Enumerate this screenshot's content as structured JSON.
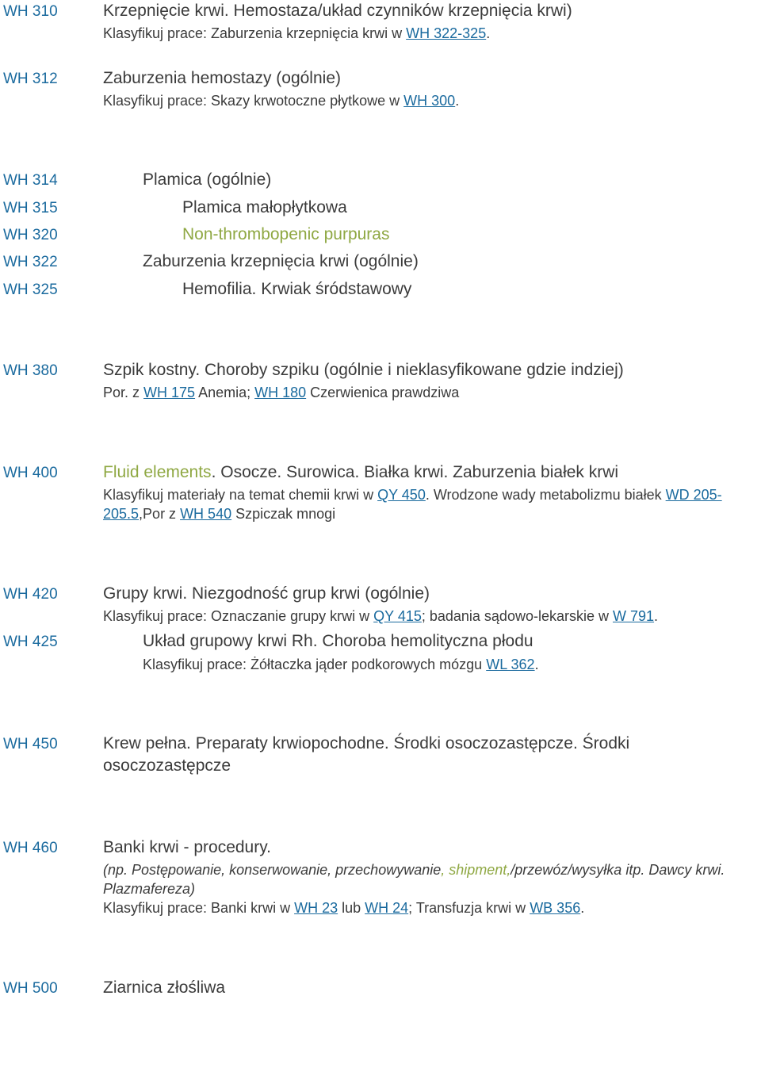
{
  "entries": [
    {
      "code": "WH 310",
      "title_parts": [
        {
          "t": "Krzepnięcie krwi. Hemostaza/układ czynników krzepnięcia krwi)"
        }
      ],
      "note": [
        {
          "t": "Klasyfikuj prace: Zaburzenia krzepnięcia krwi w "
        },
        {
          "t": "WH 322-325",
          "link": true
        },
        {
          "t": "."
        }
      ],
      "indent": "ind1"
    },
    {
      "code": "WH 312",
      "title_parts": [
        {
          "t": "Zaburzenia hemostazy (ogólnie)"
        }
      ],
      "note": [
        {
          "t": "Klasyfikuj prace: Skazy krwotoczne płytkowe w "
        },
        {
          "t": "WH 300",
          "link": true
        },
        {
          "t": "."
        }
      ],
      "indent": "ind1",
      "gap_after": true
    },
    {
      "code": "WH 314",
      "title_parts": [
        {
          "t": "Plamica (ogólnie)"
        }
      ],
      "indent": "ind2",
      "tight": true
    },
    {
      "code": "WH 315",
      "title_parts": [
        {
          "t": "Plamica małopłytkowa"
        }
      ],
      "indent": "ind3",
      "tight": true
    },
    {
      "code": "WH 320",
      "title_parts": [
        {
          "t": "Non-thrombopenic purpuras",
          "green": true
        }
      ],
      "indent": "ind3",
      "tight": true
    },
    {
      "code": "WH 322",
      "title_parts": [
        {
          "t": "Zaburzenia krzepnięcia krwi (ogólnie)"
        }
      ],
      "indent": "ind2",
      "tight": true
    },
    {
      "code": "WH 325",
      "title_parts": [
        {
          "t": "Hemofilia. Krwiak śródstawowy"
        }
      ],
      "indent": "ind3",
      "gap_after": true
    },
    {
      "code": "WH 380",
      "title_parts": [
        {
          "t": "Szpik kostny. Choroby szpiku (ogólnie i nieklasyfikowane gdzie indziej)"
        }
      ],
      "note": [
        {
          "t": "Por. z "
        },
        {
          "t": "WH 175",
          "link": true
        },
        {
          "t": " Anemia; "
        },
        {
          "t": "WH 180",
          "link": true
        },
        {
          "t": " Czerwienica prawdziwa"
        }
      ],
      "indent": "ind1",
      "gap_after": true
    },
    {
      "code": "WH 400",
      "title_parts": [
        {
          "t": "Fluid elements",
          "green": true
        },
        {
          "t": ". Osocze. Surowica. Białka krwi. Zaburzenia białek krwi"
        }
      ],
      "note": [
        {
          "t": "Klasyfikuj materiały na temat chemii krwi w "
        },
        {
          "t": "QY 450",
          "link": true
        },
        {
          "t": ". Wrodzone wady metabolizmu białek "
        },
        {
          "t": "WD 205-205.5",
          "link": true
        },
        {
          "t": ",Por z "
        },
        {
          "t": "WH 540",
          "link": true
        },
        {
          "t": " Szpiczak mnogi"
        }
      ],
      "indent": "ind1",
      "gap_after": true
    },
    {
      "code": "WH 420",
      "title_parts": [
        {
          "t": "Grupy krwi. Niezgodność grup krwi (ogólnie)"
        }
      ],
      "note": [
        {
          "t": "Klasyfikuj prace: Oznaczanie grupy krwi w "
        },
        {
          "t": "QY 415",
          "link": true
        },
        {
          "t": "; badania sądowo-lekarskie w "
        },
        {
          "t": "W 791",
          "link": true
        },
        {
          "t": "."
        }
      ],
      "indent": "ind1",
      "tight": true
    },
    {
      "code": "WH 425",
      "title_parts": [
        {
          "t": "Układ grupowy krwi Rh. Choroba hemolityczna płodu"
        }
      ],
      "note": [
        {
          "t": "Klasyfikuj prace: Żółtaczka jąder podkorowych mózgu "
        },
        {
          "t": "WL 362",
          "link": true
        },
        {
          "t": "."
        }
      ],
      "indent": "ind2",
      "gap_after": true
    },
    {
      "code": "WH 450",
      "title_parts": [
        {
          "t": "Krew pełna. Preparaty krwiopochodne. Środki osoczozastępcze. Środki osoczozastępcze"
        }
      ],
      "indent": "ind1",
      "gap_after": true
    },
    {
      "code": "WH 460",
      "title_parts": [
        {
          "t": "Banki krwi - procedury."
        }
      ],
      "note": [
        {
          "t": "(np. Postępowanie, konserwowanie, przechowywanie",
          "italic": true
        },
        {
          "t": ", shipment,",
          "italic": true,
          "green": true
        },
        {
          "t": "/przewóz/wysyłka itp. Dawcy krwi. Plazmafereza)",
          "italic": true
        },
        {
          "t": "\n"
        },
        {
          "t": "Klasyfikuj prace: Banki krwi w "
        },
        {
          "t": "WH 23",
          "link": true
        },
        {
          "t": " lub "
        },
        {
          "t": "WH 24",
          "link": true
        },
        {
          "t": "; Transfuzja krwi w "
        },
        {
          "t": "WB 356",
          "link": true
        },
        {
          "t": "."
        }
      ],
      "indent": "ind1",
      "gap_after": true
    },
    {
      "code": "WH 500",
      "title_parts": [
        {
          "t": "Ziarnica złośliwa"
        }
      ],
      "indent": "ind1"
    }
  ]
}
